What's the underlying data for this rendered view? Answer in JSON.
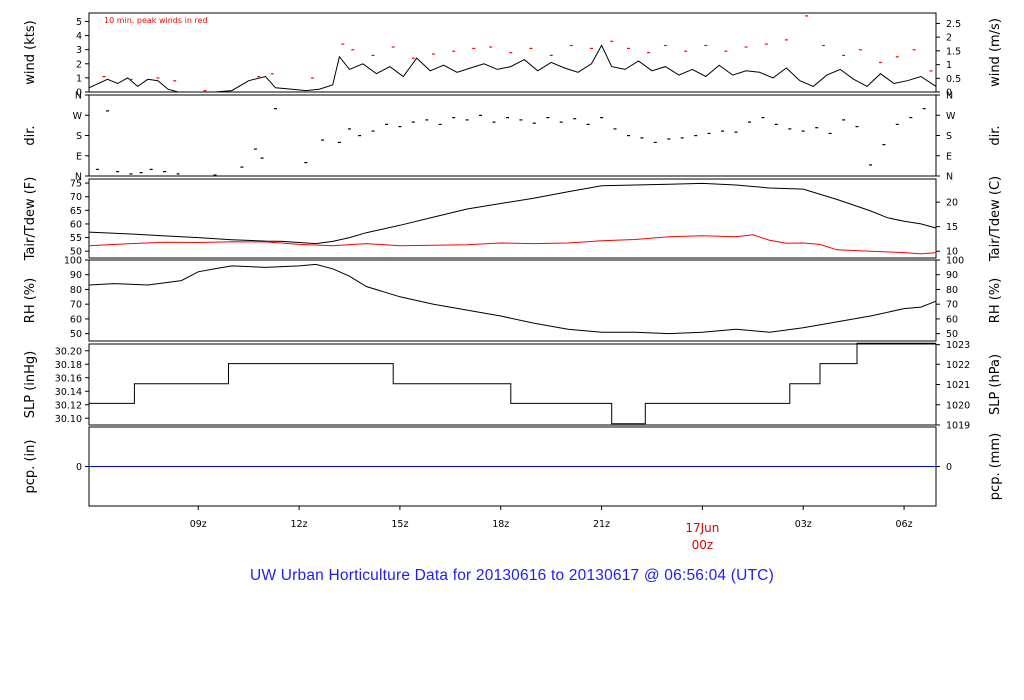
{
  "chart_data": {
    "type": "line",
    "title": "UW Urban Horticulture Data for 20130616  to  20130617 @ 06:56:04  (UTC)",
    "colors": {
      "primary": "#000000",
      "peak": "#ff0000",
      "precip": "#0000ff",
      "title": "#1c1cff",
      "date": "#e00000"
    },
    "time_axis": {
      "range_hours": [
        5.75,
        30.95
      ],
      "ticks": [
        {
          "h": 9,
          "label": "09z"
        },
        {
          "h": 12,
          "label": "12z"
        },
        {
          "h": 15,
          "label": "15z"
        },
        {
          "h": 18,
          "label": "18z"
        },
        {
          "h": 21,
          "label": "21z"
        },
        {
          "h": 24,
          "label": "00z"
        },
        {
          "h": 27,
          "label": "03z"
        },
        {
          "h": 30,
          "label": "06z"
        }
      ],
      "date_label": "17Jun"
    },
    "panels": [
      {
        "id": "wind",
        "ylabel_left": "wind (kts)",
        "ylabel_right": "wind (m/s)",
        "ylim": [
          0,
          5.6
        ],
        "left_ticks": [
          "0",
          "1",
          "2",
          "3",
          "4",
          "5"
        ],
        "right_ticks": [
          "0",
          "0.5",
          "1",
          "1.5",
          "2",
          "2.5"
        ],
        "annotation": "10 min. peak winds in red",
        "series": [
          {
            "style": "line",
            "color": "#000000",
            "x": [
              5.75,
              6.3,
              6.6,
              6.9,
              7.2,
              7.5,
              7.8,
              8.1,
              8.4,
              8.7,
              9.0,
              9.5,
              10.0,
              10.5,
              11.0,
              11.3,
              11.8,
              12.2,
              12.6,
              13.0,
              13.2,
              13.5,
              13.9,
              14.3,
              14.7,
              15.1,
              15.5,
              15.9,
              16.3,
              16.7,
              17.1,
              17.5,
              17.9,
              18.3,
              18.7,
              19.1,
              19.5,
              19.9,
              20.3,
              20.7,
              21.0,
              21.3,
              21.7,
              22.1,
              22.5,
              22.9,
              23.3,
              23.7,
              24.1,
              24.5,
              24.9,
              25.3,
              25.7,
              26.1,
              26.5,
              26.9,
              27.3,
              27.7,
              28.1,
              28.5,
              28.9,
              29.3,
              29.7,
              30.1,
              30.5,
              30.95
            ],
            "y": [
              0.3,
              0.9,
              0.6,
              1.0,
              0.4,
              0.9,
              0.8,
              0.2,
              0,
              0,
              0,
              0,
              0.1,
              0.8,
              1.1,
              0.3,
              0.2,
              0.1,
              0.2,
              0.5,
              2.5,
              1.6,
              2.0,
              1.3,
              1.8,
              1.1,
              2.4,
              1.5,
              1.9,
              1.4,
              1.7,
              2.0,
              1.6,
              1.8,
              2.3,
              1.5,
              2.1,
              1.7,
              1.4,
              2.0,
              3.3,
              1.8,
              1.6,
              2.2,
              1.5,
              1.8,
              1.2,
              1.6,
              1.1,
              1.9,
              1.2,
              1.5,
              1.4,
              1.0,
              1.7,
              0.8,
              0.4,
              1.2,
              1.6,
              0.9,
              0.4,
              1.3,
              0.6,
              0.8,
              1.1,
              0.4
            ]
          },
          {
            "style": "dots",
            "color": "#ff0000",
            "x": [
              6.2,
              7.0,
              7.8,
              8.3,
              9.2,
              10.8,
              11.2,
              12.4,
              13.3,
              13.6,
              14.2,
              14.8,
              15.4,
              16.0,
              16.6,
              17.2,
              17.7,
              18.3,
              18.9,
              19.5,
              20.1,
              20.7,
              21.3,
              21.8,
              22.4,
              22.9,
              23.5,
              24.1,
              24.7,
              25.3,
              25.9,
              26.5,
              27.1,
              27.6,
              28.2,
              28.7,
              29.3,
              29.8,
              30.3,
              30.8
            ],
            "y": [
              1.1,
              0.9,
              1.0,
              0.8,
              0.1,
              1.1,
              1.3,
              1.0,
              3.4,
              3.0,
              2.6,
              3.2,
              2.4,
              2.7,
              2.9,
              3.1,
              3.2,
              2.8,
              3.1,
              2.6,
              3.3,
              3.1,
              3.6,
              3.1,
              2.8,
              3.3,
              2.9,
              3.3,
              2.9,
              3.2,
              3.4,
              3.7,
              5.4,
              3.3,
              2.6,
              3.0,
              2.1,
              2.5,
              3.0,
              1.5
            ]
          }
        ]
      },
      {
        "id": "dir",
        "ylabel_left": "dir.",
        "ylabel_right": "dir.",
        "ylim": [
          0,
          360
        ],
        "left_ticks": [
          "N",
          "E",
          "S",
          "W",
          "N"
        ],
        "right_ticks": [
          "N",
          "E",
          "S",
          "W",
          "N"
        ],
        "series": [
          {
            "style": "dots",
            "color": "#000000",
            "x": [
              6.0,
              6.3,
              6.6,
              7.0,
              7.3,
              7.6,
              8.0,
              8.4,
              9.5,
              10.3,
              10.7,
              10.9,
              11.3,
              12.2,
              12.7,
              13.2,
              13.5,
              13.8,
              14.2,
              14.6,
              15.0,
              15.4,
              15.8,
              16.2,
              16.6,
              17.0,
              17.4,
              17.8,
              18.2,
              18.6,
              19.0,
              19.4,
              19.8,
              20.2,
              20.6,
              21.0,
              21.4,
              21.8,
              22.2,
              22.6,
              23.0,
              23.4,
              23.8,
              24.2,
              24.6,
              25.0,
              25.4,
              25.8,
              26.2,
              26.6,
              27.0,
              27.4,
              27.8,
              28.2,
              28.6,
              29.0,
              29.4,
              29.8,
              30.2,
              30.6
            ],
            "y": [
              30,
              290,
              20,
              10,
              15,
              30,
              20,
              10,
              5,
              40,
              120,
              80,
              300,
              60,
              160,
              150,
              210,
              180,
              200,
              230,
              220,
              240,
              250,
              230,
              260,
              250,
              270,
              240,
              260,
              250,
              235,
              260,
              240,
              255,
              230,
              260,
              210,
              180,
              170,
              150,
              165,
              170,
              180,
              190,
              200,
              195,
              240,
              260,
              230,
              210,
              200,
              215,
              190,
              250,
              220,
              50,
              140,
              230,
              260,
              300
            ]
          }
        ]
      },
      {
        "id": "temp",
        "ylabel_left": "Tair/Tdew (F)",
        "ylabel_right": "Tair/Tdew (C)",
        "ylim": [
          47.5,
          76.5
        ],
        "left_ticks": [
          "50",
          "55",
          "60",
          "65",
          "70",
          "75"
        ],
        "right_ticks": [
          "10",
          "15",
          "20"
        ],
        "series": [
          {
            "name": "Tair",
            "style": "line",
            "color": "#000000",
            "x": [
              5.75,
              7,
              8,
              9,
              10,
              11,
              11.5,
              12,
              12.5,
              13,
              13.5,
              14,
              15,
              16,
              17,
              18,
              19,
              20,
              21,
              22,
              23,
              24,
              25,
              26,
              27,
              28,
              29,
              29.5,
              30,
              30.5,
              30.95
            ],
            "y": [
              57,
              56.3,
              55.6,
              55.0,
              54.2,
              53.7,
              53.6,
              53.2,
              52.8,
              53.6,
              55.0,
              56.8,
              59.5,
              62.5,
              65.5,
              67.5,
              69.5,
              71.8,
              74.0,
              74.3,
              74.6,
              74.9,
              74.3,
              73.2,
              72.8,
              69.0,
              64.8,
              62.3,
              61.0,
              60.0,
              58.5
            ]
          },
          {
            "name": "Tdew",
            "style": "line",
            "color": "#ff0000",
            "x": [
              5.75,
              7,
              8,
              9,
              10,
              11,
              12,
              13,
              14,
              15,
              16,
              17,
              18,
              19,
              20,
              21,
              22,
              23,
              24,
              25,
              25.5,
              26,
              26.5,
              27,
              27.5,
              28,
              29,
              30,
              30.5,
              30.95
            ],
            "y": [
              52.0,
              52.8,
              53.3,
              53.2,
              53.5,
              53.4,
              52.5,
              52.0,
              52.8,
              52.0,
              52.2,
              52.4,
              53.0,
              52.8,
              53.0,
              53.8,
              54.3,
              55.3,
              55.7,
              55.3,
              56.0,
              54.0,
              52.9,
              53.0,
              52.5,
              50.5,
              50.0,
              49.5,
              49.0,
              49.5
            ]
          }
        ]
      },
      {
        "id": "rh",
        "ylabel_left": "RH (%)",
        "ylabel_right": "RH (%)",
        "ylim": [
          45,
          100
        ],
        "left_ticks": [
          "50",
          "60",
          "70",
          "80",
          "90",
          "100"
        ],
        "right_ticks": [
          "50",
          "60",
          "70",
          "80",
          "90",
          "100"
        ],
        "series": [
          {
            "style": "line",
            "color": "#000000",
            "x": [
              5.75,
              6.5,
              7.5,
              8.5,
              9,
              9.5,
              10,
              11,
              12,
              12.5,
              13,
              13.5,
              14,
              15,
              16,
              17,
              18,
              19,
              20,
              21,
              22,
              23,
              24,
              25,
              26,
              27,
              28,
              29,
              30,
              30.5,
              30.95
            ],
            "y": [
              83,
              84,
              83,
              86,
              92,
              94,
              96,
              95,
              96,
              97,
              94,
              89,
              82,
              75,
              70,
              66,
              62,
              57,
              53,
              51,
              51,
              50,
              51,
              53,
              51,
              54,
              58,
              62,
              67,
              68,
              72
            ]
          }
        ]
      },
      {
        "id": "slp",
        "ylabel_left": "SLP (inHg)",
        "ylabel_right": "SLP (hPa)",
        "ylim": [
          30.09,
          30.21
        ],
        "left_ticks": [
          "30.10",
          "30.12",
          "30.14",
          "30.16",
          "30.18",
          "30.20"
        ],
        "right_ticks": [
          "1019",
          "1020",
          "1021",
          "1022",
          "1023"
        ],
        "series": [
          {
            "style": "step",
            "color": "#000000",
            "x": [
              5.75,
              7.1,
              9.9,
              14.8,
              18.3,
              21.3,
              22.3,
              25.5,
              26.6,
              27.5,
              28.6,
              30.95
            ],
            "y": [
              30.122,
              30.151,
              30.181,
              30.151,
              30.122,
              30.092,
              30.122,
              30.122,
              30.151,
              30.181,
              30.211,
              30.211
            ]
          }
        ]
      },
      {
        "id": "pcp",
        "ylabel_left": "pcp. (in)",
        "ylabel_right": "pcp. (mm)",
        "ylim": [
          -1,
          1
        ],
        "left_ticks": [
          "0"
        ],
        "right_ticks": [
          "0"
        ],
        "series": [
          {
            "style": "line",
            "color": "#0000ff",
            "x": [
              5.75,
              30.95
            ],
            "y": [
              0,
              0
            ]
          }
        ]
      }
    ]
  }
}
